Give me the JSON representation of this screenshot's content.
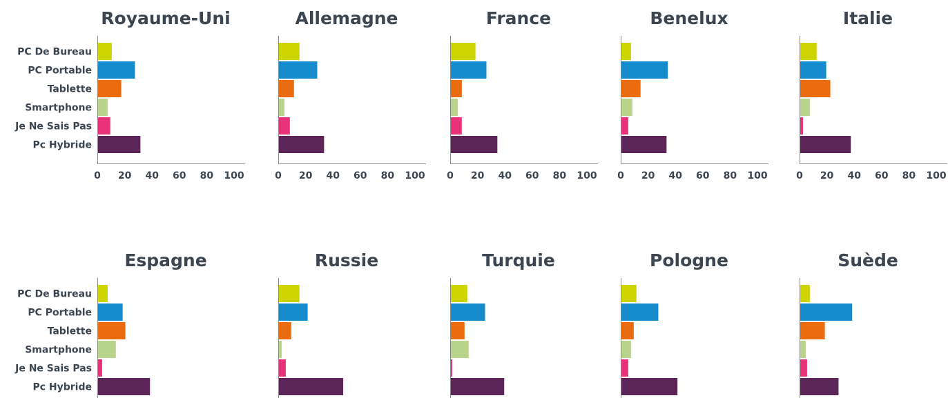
{
  "chart_data": {
    "type": "bar",
    "orientation": "horizontal",
    "categories": [
      "PC De Bureau",
      "PC Portable",
      "Tablette",
      "Smartphone",
      "Je Ne Sais Pas",
      "Pc Hybride"
    ],
    "category_colors": [
      "#cdd400",
      "#168bcb",
      "#eb6b0f",
      "#b8d48a",
      "#e8337a",
      "#5b2558"
    ],
    "xlim": [
      0,
      100
    ],
    "xticks": [
      0,
      20,
      40,
      60,
      80,
      100
    ],
    "grid": false,
    "legend": "none",
    "panels": [
      {
        "title": "Royaume-Uni",
        "values": [
          10,
          27,
          17,
          7,
          9,
          31
        ]
      },
      {
        "title": "Allemagne",
        "values": [
          15,
          28,
          11,
          4,
          8,
          33
        ]
      },
      {
        "title": "France",
        "values": [
          18,
          26,
          8,
          5,
          8,
          34
        ]
      },
      {
        "title": "Benelux",
        "values": [
          7,
          34,
          14,
          8,
          5,
          33
        ]
      },
      {
        "title": "Italie",
        "values": [
          12,
          19,
          22,
          7,
          2,
          37
        ]
      },
      {
        "title": "Espagne",
        "values": [
          7,
          18,
          20,
          13,
          3,
          38
        ]
      },
      {
        "title": "Russie",
        "values": [
          15,
          21,
          9,
          2,
          5,
          47
        ]
      },
      {
        "title": "Turquie",
        "values": [
          12,
          25,
          10,
          13,
          1,
          39
        ]
      },
      {
        "title": "Pologne",
        "values": [
          11,
          27,
          9,
          7,
          5,
          41
        ]
      },
      {
        "title": "Suède",
        "values": [
          7,
          38,
          18,
          4,
          5,
          28
        ]
      }
    ]
  }
}
